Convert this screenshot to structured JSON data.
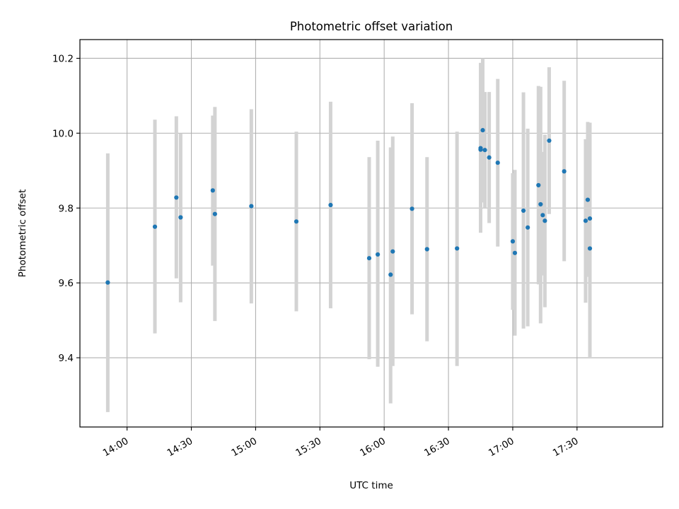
{
  "chart_data": {
    "type": "scatter",
    "title": "Photometric offset variation",
    "xlabel": "UTC time",
    "ylabel": "Photometric offset",
    "x_tick_labels": [
      "14:00",
      "14:30",
      "15:00",
      "15:30",
      "16:00",
      "16:30",
      "17:00",
      "17:30"
    ],
    "y_tick_labels": [
      "9.4",
      "9.6",
      "9.8",
      "10.0",
      "10.2"
    ],
    "x_ticks": [
      "14:00",
      "14:30",
      "15:00",
      "15:30",
      "16:00",
      "16:30",
      "17:00",
      "17:30"
    ],
    "y_ticks": [
      9.4,
      9.6,
      9.8,
      10.0,
      10.2
    ],
    "xlim": [
      "13:38",
      "18:10"
    ],
    "ylim": [
      9.215,
      10.25
    ],
    "grid": true,
    "marker_color": "#1f77b4",
    "errorbar_color": "#d3d3d3",
    "series": [
      {
        "points": [
          {
            "x": "13:51",
            "y": 9.601,
            "ylow": 9.255,
            "yhigh": 9.946
          },
          {
            "x": "14:13",
            "y": 9.75,
            "ylow": 9.465,
            "yhigh": 10.036
          },
          {
            "x": "14:23",
            "y": 9.828,
            "ylow": 9.612,
            "yhigh": 10.045
          },
          {
            "x": "14:25",
            "y": 9.775,
            "ylow": 9.548,
            "yhigh": 10.0
          },
          {
            "x": "14:40",
            "y": 9.847,
            "ylow": 9.646,
            "yhigh": 10.047
          },
          {
            "x": "14:41",
            "y": 9.784,
            "ylow": 9.498,
            "yhigh": 10.07
          },
          {
            "x": "14:58",
            "y": 9.805,
            "ylow": 9.545,
            "yhigh": 10.064
          },
          {
            "x": "15:19",
            "y": 9.764,
            "ylow": 9.524,
            "yhigh": 10.004
          },
          {
            "x": "15:35",
            "y": 9.808,
            "ylow": 9.532,
            "yhigh": 10.084
          },
          {
            "x": "15:53",
            "y": 9.666,
            "ylow": 9.396,
            "yhigh": 9.936
          },
          {
            "x": "15:57",
            "y": 9.676,
            "ylow": 9.376,
            "yhigh": 9.98
          },
          {
            "x": "16:03",
            "y": 9.622,
            "ylow": 9.278,
            "yhigh": 9.962
          },
          {
            "x": "16:04",
            "y": 9.684,
            "ylow": 9.378,
            "yhigh": 9.991
          },
          {
            "x": "16:13",
            "y": 9.798,
            "ylow": 9.516,
            "yhigh": 10.08
          },
          {
            "x": "16:20",
            "y": 9.69,
            "ylow": 9.444,
            "yhigh": 9.936
          },
          {
            "x": "16:34",
            "y": 9.692,
            "ylow": 9.378,
            "yhigh": 10.004
          },
          {
            "x": "16:45",
            "y": 9.956,
            "ylow": 9.734,
            "yhigh": 10.178
          },
          {
            "x": "16:45",
            "y": 9.96,
            "ylow": 9.742,
            "yhigh": 10.188
          },
          {
            "x": "16:46",
            "y": 10.008,
            "ylow": 9.815,
            "yhigh": 10.2
          },
          {
            "x": "16:47",
            "y": 9.955,
            "ylow": 9.8,
            "yhigh": 10.11
          },
          {
            "x": "16:49",
            "y": 9.935,
            "ylow": 9.76,
            "yhigh": 10.11
          },
          {
            "x": "16:53",
            "y": 9.921,
            "ylow": 9.697,
            "yhigh": 10.145
          },
          {
            "x": "17:00",
            "y": 9.711,
            "ylow": 9.528,
            "yhigh": 9.893
          },
          {
            "x": "17:01",
            "y": 9.68,
            "ylow": 9.459,
            "yhigh": 9.902
          },
          {
            "x": "17:05",
            "y": 9.793,
            "ylow": 9.478,
            "yhigh": 10.109
          },
          {
            "x": "17:07",
            "y": 9.748,
            "ylow": 9.484,
            "yhigh": 10.012
          },
          {
            "x": "17:12",
            "y": 9.861,
            "ylow": 9.596,
            "yhigh": 10.126
          },
          {
            "x": "17:13",
            "y": 9.81,
            "ylow": 9.492,
            "yhigh": 10.124
          },
          {
            "x": "17:14",
            "y": 9.781,
            "ylow": 9.62,
            "yhigh": 9.95
          },
          {
            "x": "17:15",
            "y": 9.766,
            "ylow": 9.535,
            "yhigh": 9.996
          },
          {
            "x": "17:17",
            "y": 9.98,
            "ylow": 9.784,
            "yhigh": 10.176
          },
          {
            "x": "17:24",
            "y": 9.898,
            "ylow": 9.658,
            "yhigh": 10.14
          },
          {
            "x": "17:34",
            "y": 9.766,
            "ylow": 9.547,
            "yhigh": 9.984
          },
          {
            "x": "17:35",
            "y": 9.822,
            "ylow": 9.616,
            "yhigh": 10.03
          },
          {
            "x": "17:36",
            "y": 9.772,
            "ylow": 9.514,
            "yhigh": 10.028
          },
          {
            "x": "17:36",
            "y": 9.692,
            "ylow": 9.402,
            "yhigh": 9.982
          }
        ]
      }
    ]
  }
}
